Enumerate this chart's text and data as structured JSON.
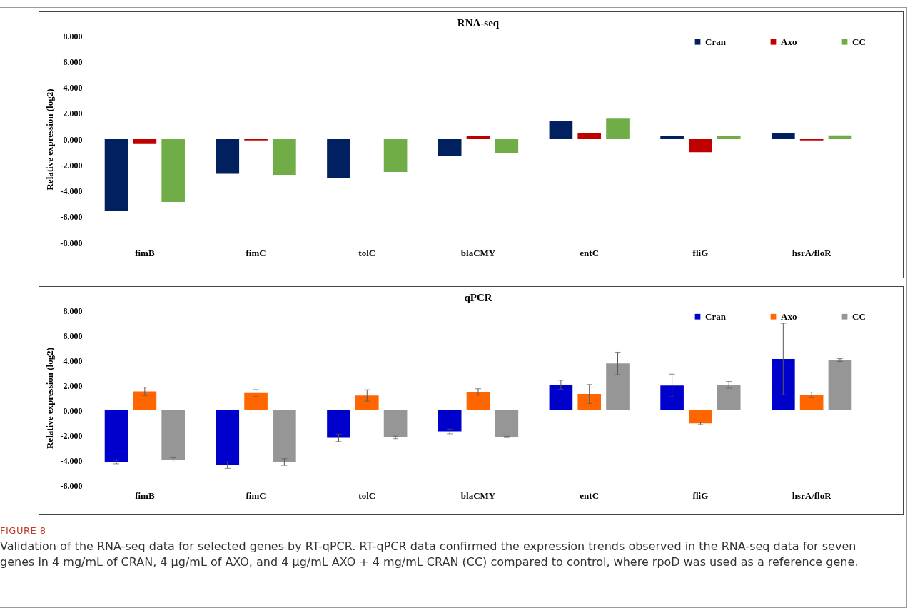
{
  "chart_data": [
    {
      "type": "bar",
      "title": "RNA-seq",
      "ylabel": "Relative expression (log2)",
      "categories": [
        "fimB",
        "fimC",
        "tolC",
        "blaCMY",
        "entC",
        "fliG",
        "hsrA/floR"
      ],
      "series": [
        {
          "name": "Cran",
          "color": "#002060",
          "values": [
            -5.54,
            -2.68,
            -3.0,
            -1.32,
            1.38,
            0.23,
            0.49
          ]
        },
        {
          "name": "Axo",
          "color": "#c00000",
          "values": [
            -0.37,
            -0.1,
            null,
            0.23,
            0.49,
            -1.0,
            -0.1
          ]
        },
        {
          "name": "CC",
          "color": "#70ad47",
          "values": [
            -4.85,
            -2.76,
            -2.54,
            -1.06,
            1.58,
            0.23,
            0.29
          ]
        }
      ],
      "ylim": [
        -8,
        8
      ],
      "yticks": [
        {
          "value": -8,
          "label": "-8.000"
        },
        {
          "value": -6,
          "label": "-6.000"
        },
        {
          "value": -4,
          "label": "-4.000"
        },
        {
          "value": -2,
          "label": "-2.000"
        },
        {
          "value": 0,
          "label": "0.000"
        },
        {
          "value": 2,
          "label": "2.000"
        },
        {
          "value": 4,
          "label": "4.000"
        },
        {
          "value": 6,
          "label": "6.000"
        },
        {
          "value": 8,
          "label": "8.000"
        }
      ],
      "grid": false,
      "legend": "top right"
    },
    {
      "type": "bar",
      "title": "qPCR",
      "ylabel": "Relative expression (log2)",
      "categories": [
        "fimB",
        "fimC",
        "tolC",
        "blaCMY",
        "entC",
        "fliG",
        "hsrA/floR"
      ],
      "series": [
        {
          "name": "Cran",
          "color": "#0000cc",
          "values": [
            -4.14,
            -4.39,
            -2.2,
            -1.69,
            2.04,
            1.99,
            4.11
          ],
          "errors": [
            0.14,
            0.26,
            0.3,
            0.19,
            0.37,
            0.91,
            2.86
          ]
        },
        {
          "name": "Axo",
          "color": "#ff6600",
          "values": [
            1.52,
            1.38,
            1.19,
            1.47,
            1.31,
            -1.04,
            1.23
          ],
          "errors": [
            0.33,
            0.28,
            0.46,
            0.26,
            0.76,
            0.1,
            0.22
          ]
        },
        {
          "name": "CC",
          "color": "#969696",
          "values": [
            -3.97,
            -4.14,
            -2.17,
            -2.13,
            3.76,
            2.04,
            4.03
          ],
          "errors": [
            0.17,
            0.27,
            0.1,
            0.05,
            0.9,
            0.27,
            0.11
          ]
        }
      ],
      "ylim": [
        -6,
        8
      ],
      "yticks": [
        {
          "value": -6,
          "label": "-6.000"
        },
        {
          "value": -4,
          "label": "-4.000"
        },
        {
          "value": -2,
          "label": "-2.000"
        },
        {
          "value": 0,
          "label": "0.000"
        },
        {
          "value": 2,
          "label": "2.000"
        },
        {
          "value": 4,
          "label": "4.000"
        },
        {
          "value": 6,
          "label": "6.000"
        },
        {
          "value": 8,
          "label": "8.000"
        }
      ],
      "grid": false,
      "legend": "top right",
      "annotations": [
        "FIGURE 8",
        "Validation of the RNA-seq data for selected genes by RT-qPCR. RT-qPCR data confirmed the expression trends observed in the RNA-seq data for seven genes in 4 mg/mL of CRAN, 4 µg/mL of AXO, and 4 µg/mL AXO + 4 mg/mL CRAN (CC) compared to control, where rpoD was used as a reference gene."
      ]
    }
  ]
}
